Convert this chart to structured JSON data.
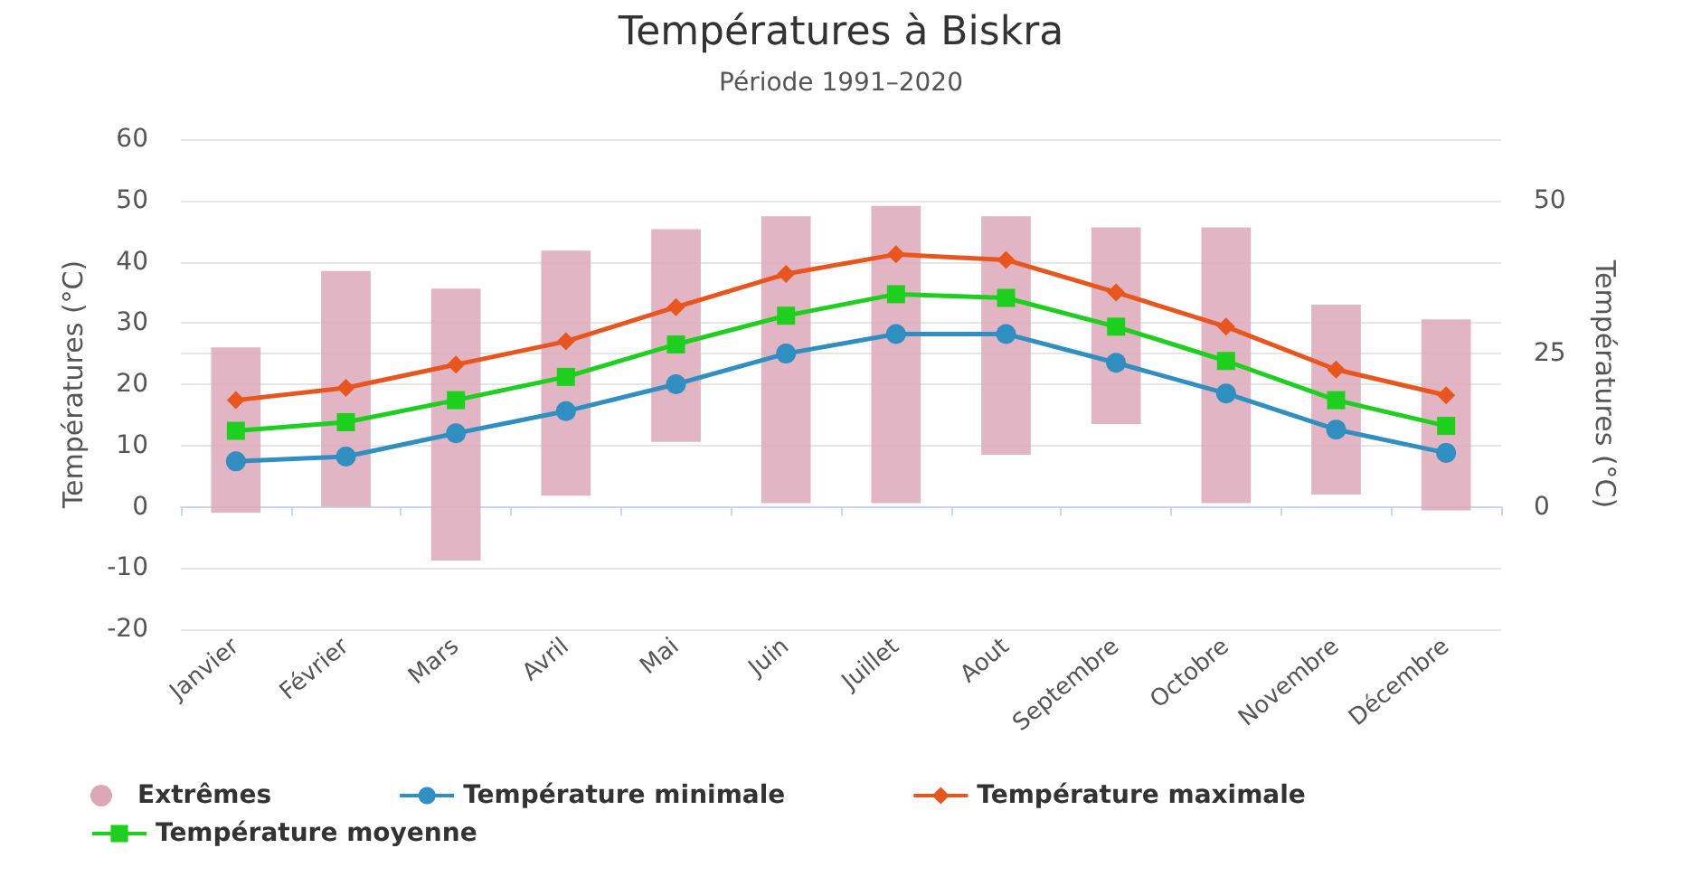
{
  "chart_data": {
    "type": "line",
    "title": "Températures à Biskra",
    "subtitle": "Période 1991–2020",
    "ylabel": "Températures (°C)",
    "y2label": "Températures (°C)",
    "categories": [
      "Janvier",
      "Février",
      "Mars",
      "Avril",
      "Mai",
      "Juin",
      "Juillet",
      "Aout",
      "Septembre",
      "Octobre",
      "Novembre",
      "Décembre"
    ],
    "series": [
      {
        "name": "Extrêmes",
        "type": "bar",
        "color": "#dca8b8",
        "base": [
          -1,
          0,
          -8.8,
          1.8,
          10.6,
          0.6,
          0.6,
          8.5,
          13.5,
          0.6,
          2,
          -0.6
        ],
        "values": [
          27,
          38.5,
          44.4,
          40,
          34.7,
          46.8,
          48.5,
          38.9,
          32.1,
          45,
          31,
          31.2
        ]
      },
      {
        "name": "Température minimale",
        "color": "#2f8fc0",
        "marker": "circle",
        "values": [
          7.4,
          8.2,
          12,
          15.6,
          20,
          25,
          28.2,
          28.2,
          23.5,
          18.5,
          12.6,
          8.8
        ]
      },
      {
        "name": "Température maximale",
        "color": "#e8561e",
        "marker": "diamond",
        "values": [
          17.4,
          19.4,
          23.2,
          27,
          32.6,
          38,
          41.2,
          40.3,
          35,
          29.4,
          22.4,
          18.2
        ]
      },
      {
        "name": "Température moyenne",
        "color": "#1ed01e",
        "marker": "square",
        "values": [
          12.4,
          13.8,
          17.4,
          21.2,
          26.5,
          31.2,
          34.7,
          34.1,
          29.4,
          23.8,
          17.4,
          13.2
        ]
      }
    ],
    "ylim": [
      -20,
      60
    ],
    "yticks": [
      -20,
      -10,
      0,
      10,
      20,
      30,
      40,
      50,
      60
    ],
    "y2lim": [
      -20,
      60
    ],
    "y2ticks": [
      0,
      25,
      50
    ],
    "grid": true,
    "legend": "bottom"
  }
}
